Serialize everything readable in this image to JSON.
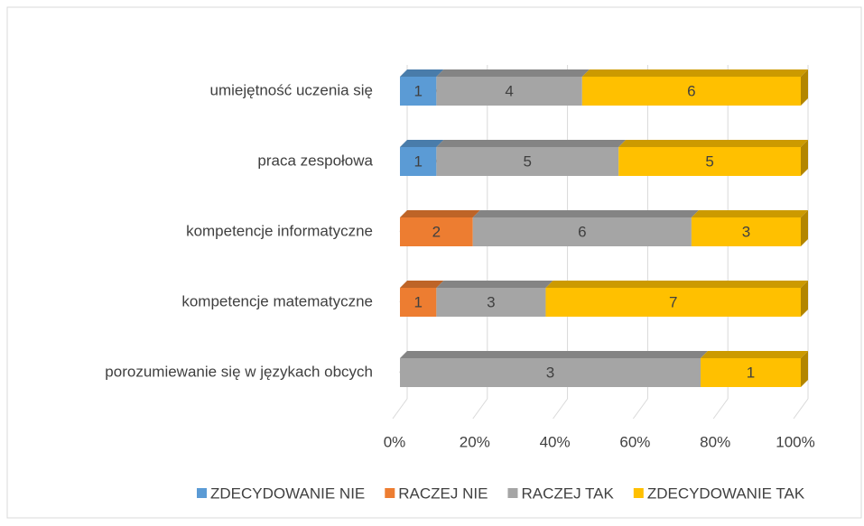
{
  "chart_data": {
    "type": "bar",
    "orientation": "horizontal",
    "stacking": "percent",
    "categories": [
      "umiejętność uczenia się",
      "praca zespołowa",
      "kompetencje informatyczne",
      "kompetencje matematyczne",
      "porozumiewanie się w językach obcych"
    ],
    "series": [
      {
        "name": "ZDECYDOWANIE NIE",
        "color": "#5b9bd5",
        "values": [
          1,
          1,
          0,
          0,
          0
        ]
      },
      {
        "name": "RACZEJ NIE",
        "color": "#ed7d31",
        "values": [
          0,
          0,
          2,
          1,
          0
        ]
      },
      {
        "name": "RACZEJ TAK",
        "color": "#a5a5a5",
        "values": [
          4,
          5,
          6,
          3,
          3
        ]
      },
      {
        "name": "ZDECYDOWANIE TAK",
        "color": "#ffc000",
        "values": [
          6,
          5,
          3,
          7,
          1
        ]
      }
    ],
    "xlim": [
      0,
      100
    ],
    "xticks": [
      {
        "value": 0,
        "label": "0%"
      },
      {
        "value": 20,
        "label": "20%"
      },
      {
        "value": 40,
        "label": "40%"
      },
      {
        "value": 60,
        "label": "60%"
      },
      {
        "value": 80,
        "label": "80%"
      },
      {
        "value": 100,
        "label": "100%"
      }
    ],
    "grid": true,
    "legend": "bottom"
  }
}
